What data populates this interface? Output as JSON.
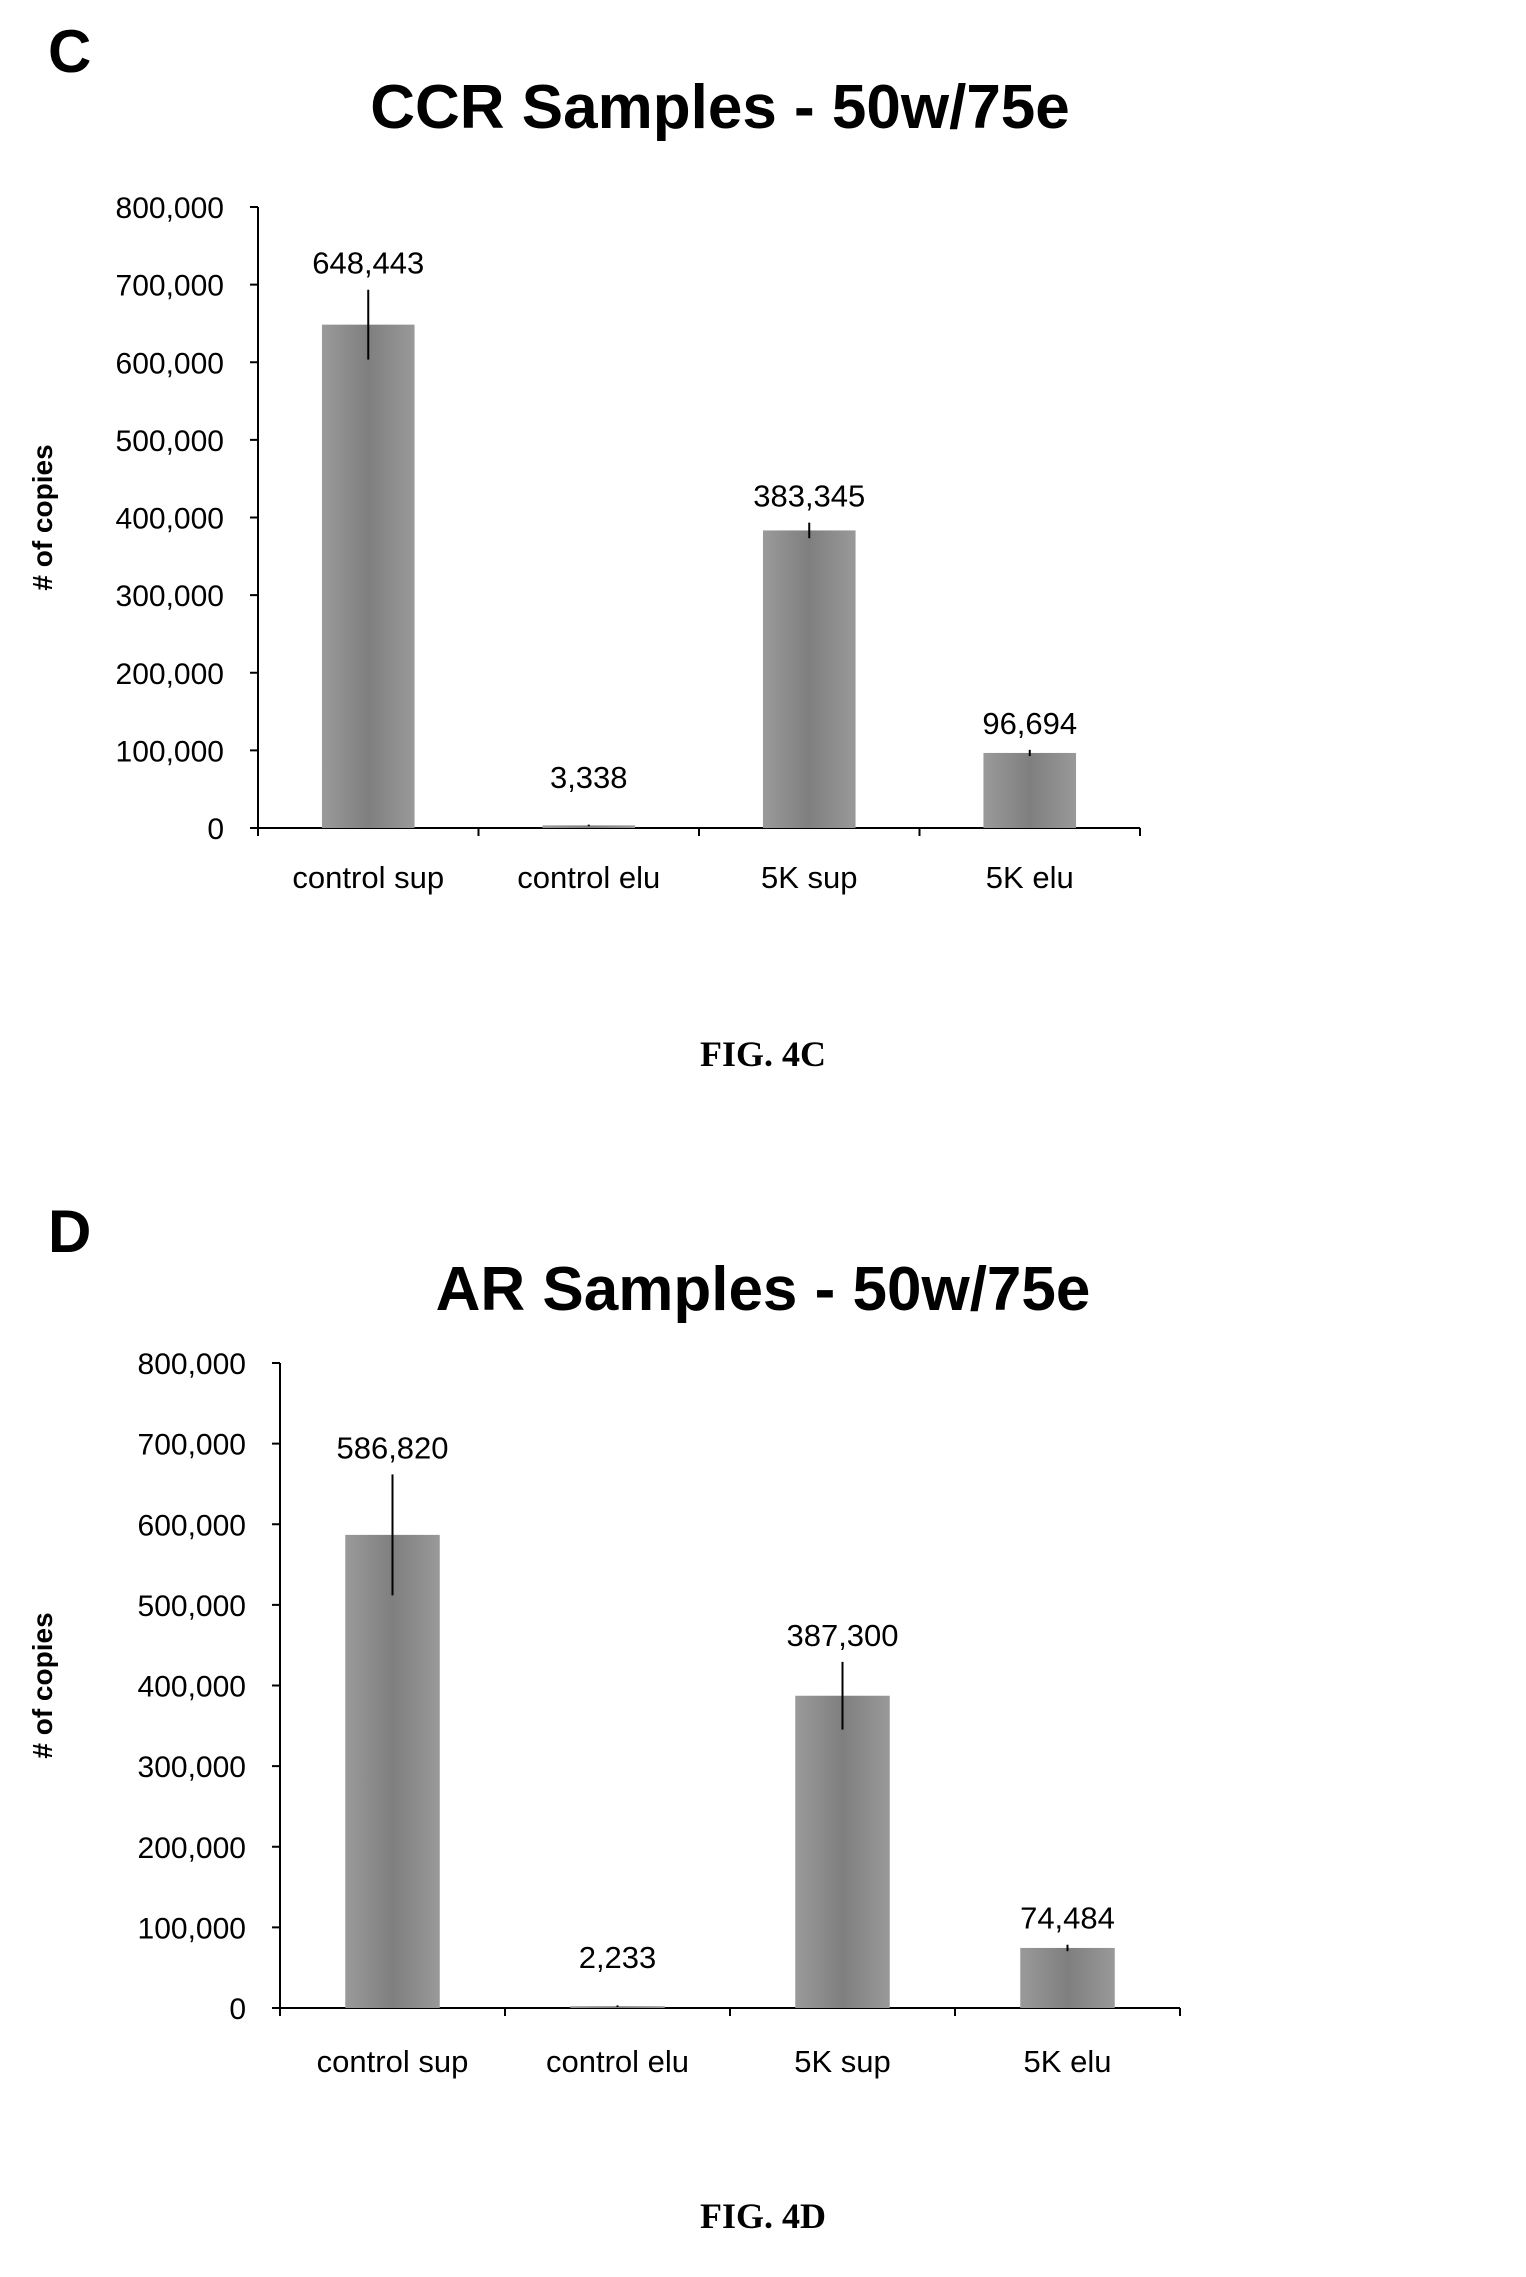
{
  "chart_data": [
    {
      "type": "bar",
      "panel_letter": "C",
      "title": "CCR Samples - 50w/75e",
      "caption": "FIG. 4C",
      "xlabel": "",
      "ylabel": "# of copies",
      "categories": [
        "control sup",
        "control elu",
        "5K sup",
        "5K elu"
      ],
      "values": [
        648443,
        3338,
        383345,
        96694
      ],
      "data_labels": [
        "648,443",
        "3,338",
        "383,345",
        "96,694"
      ],
      "error_bars": [
        45000,
        1000,
        10000,
        4000
      ],
      "ylim": [
        0,
        800000
      ],
      "yticks": [
        0,
        100000,
        200000,
        300000,
        400000,
        500000,
        600000,
        700000,
        800000
      ],
      "ytick_labels": [
        "0",
        "100,000",
        "200,000",
        "300,000",
        "400,000",
        "500,000",
        "600,000",
        "700,000",
        "800,000"
      ],
      "grid": false,
      "legend": "none",
      "bar_color": "#8a8a8a"
    },
    {
      "type": "bar",
      "panel_letter": "D",
      "title": "AR Samples - 50w/75e",
      "caption": "FIG. 4D",
      "xlabel": "",
      "ylabel": "# of copies",
      "categories": [
        "control sup",
        "control elu",
        "5K sup",
        "5K elu"
      ],
      "values": [
        586820,
        2233,
        387300,
        74484
      ],
      "data_labels": [
        "586,820",
        "2,233",
        "387,300",
        "74,484"
      ],
      "error_bars": [
        75000,
        1000,
        42000,
        4000
      ],
      "ylim": [
        0,
        800000
      ],
      "yticks": [
        0,
        100000,
        200000,
        300000,
        400000,
        500000,
        600000,
        700000,
        800000
      ],
      "ytick_labels": [
        "0",
        "100,000",
        "200,000",
        "300,000",
        "400,000",
        "500,000",
        "600,000",
        "700,000",
        "800,000"
      ],
      "grid": false,
      "legend": "none",
      "bar_color": "#8a8a8a"
    }
  ]
}
